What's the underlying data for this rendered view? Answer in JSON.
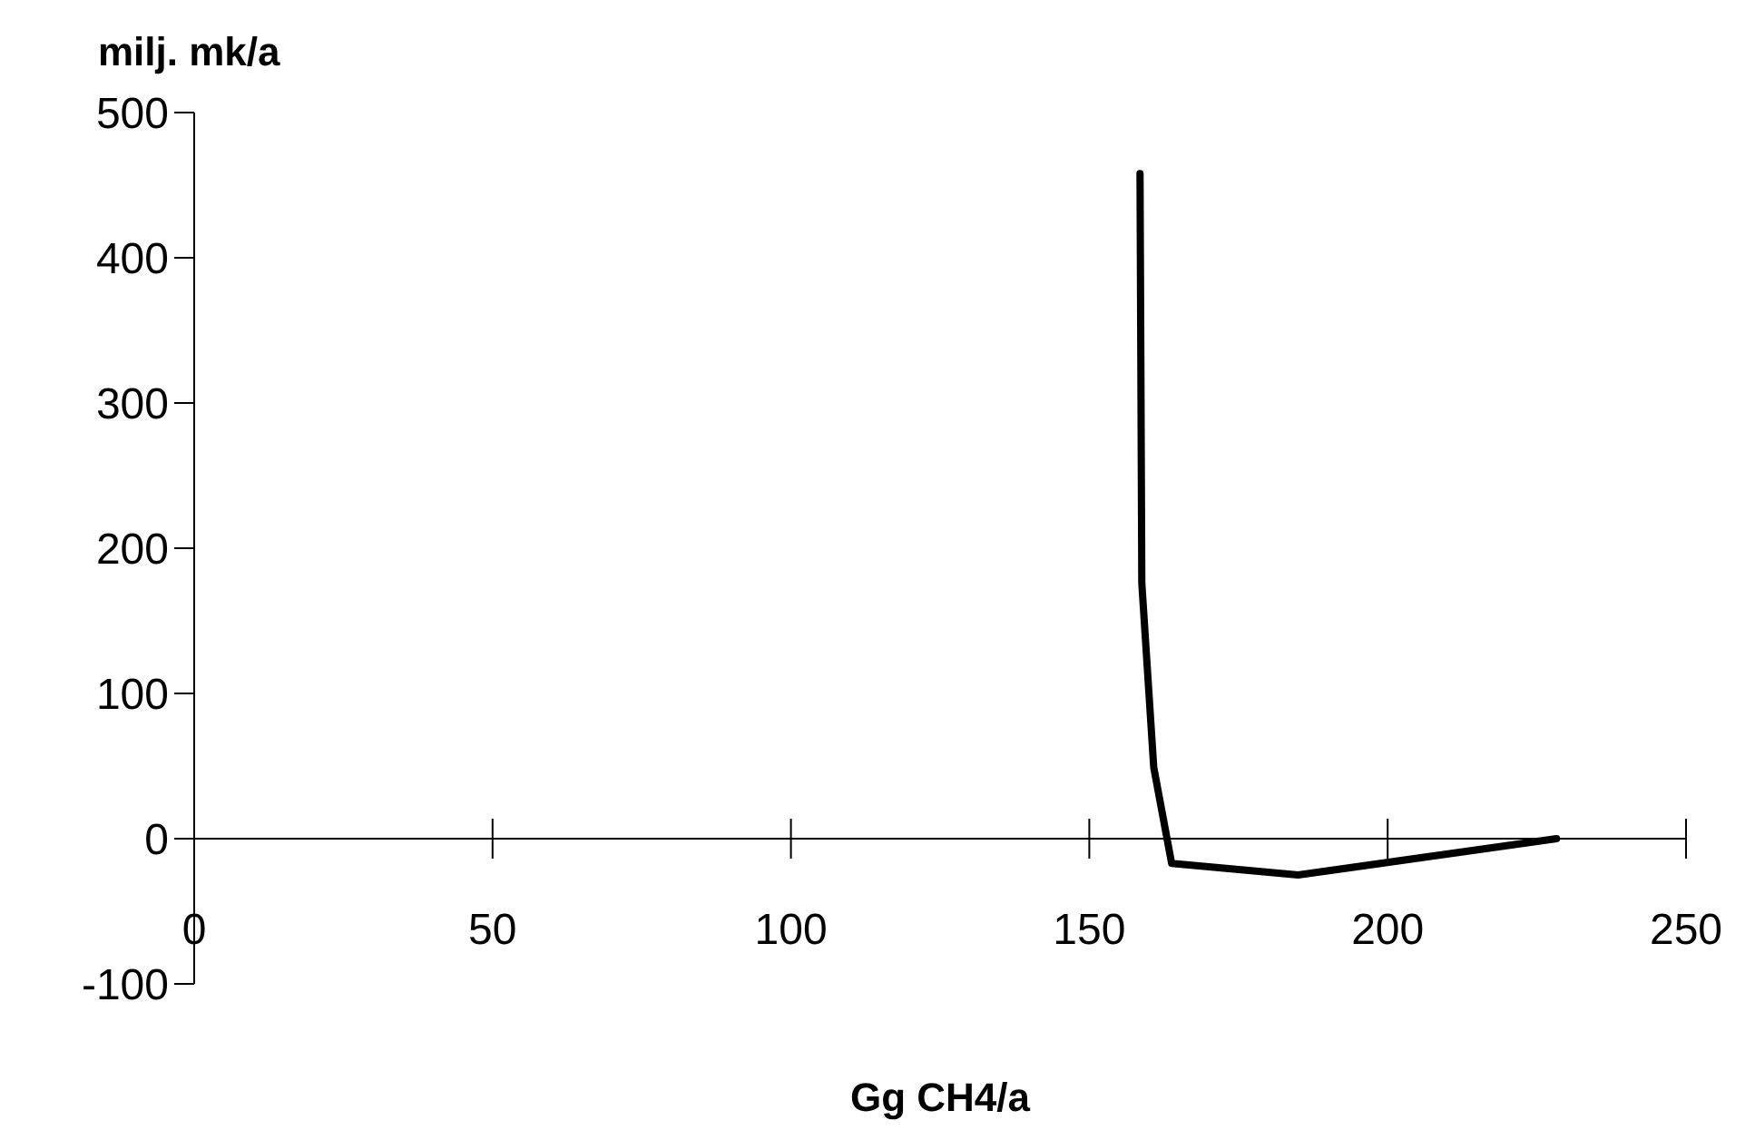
{
  "chart_data": {
    "type": "line",
    "xlabel": "Gg CH4/a",
    "ylabel": "milj. mk/a",
    "x": [
      158.5,
      158.8,
      160.8,
      163.8,
      185,
      228.3
    ],
    "series": [
      {
        "color": "#000000",
        "values": [
          458,
          176,
          49,
          -17,
          -25,
          0
        ]
      }
    ],
    "xlim": [
      0,
      250
    ],
    "xticks": [
      0,
      50,
      100,
      150,
      200,
      250
    ],
    "ylim": [
      -100,
      500
    ],
    "yticks": [
      -100,
      0,
      100,
      200,
      300,
      400,
      500
    ],
    "grid": false,
    "marker": "none",
    "line_style": "solid"
  }
}
